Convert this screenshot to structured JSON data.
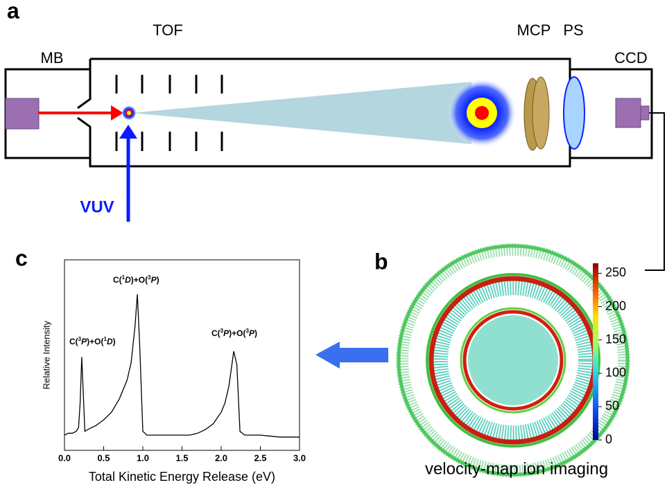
{
  "diagram": {
    "panel_a": "a",
    "panel_b": "b",
    "panel_c": "c",
    "tof": "TOF",
    "mb": "MB",
    "mcp": "MCP",
    "ps": "PS",
    "ccd": "CCD",
    "vuv": "VUV",
    "caption_b": "velocity-map ion imaging",
    "colorbar": {
      "lim": [
        0,
        265
      ],
      "ticks": [
        0,
        50,
        100,
        150,
        200,
        250
      ]
    }
  },
  "chart_data": {
    "type": "line",
    "xlabel": "Total Kinetic Energy Release (eV)",
    "ylabel": "Relative Intensity",
    "xlim": [
      0,
      3
    ],
    "xticks": [
      {
        "value": 0,
        "label": "0.0"
      },
      {
        "value": 0.5,
        "label": "0.5"
      },
      {
        "value": 1,
        "label": "1.0"
      },
      {
        "value": 1.5,
        "label": "1.5"
      },
      {
        "value": 2,
        "label": "2.0"
      },
      {
        "value": 2.5,
        "label": "2.5"
      },
      {
        "value": 3,
        "label": "3.0"
      }
    ],
    "ylim": [
      0,
      1
    ],
    "color": "#000000",
    "x": [
      0.0,
      0.05,
      0.1,
      0.15,
      0.18,
      0.2,
      0.22,
      0.24,
      0.26,
      0.3,
      0.4,
      0.5,
      0.6,
      0.7,
      0.8,
      0.85,
      0.9,
      0.93,
      0.96,
      1.0,
      1.05,
      1.2,
      1.4,
      1.6,
      1.7,
      1.8,
      1.9,
      2.0,
      2.05,
      2.1,
      2.16,
      2.2,
      2.24,
      2.3,
      2.5,
      2.75,
      3.0
    ],
    "values": [
      0.08,
      0.09,
      0.09,
      0.1,
      0.12,
      0.25,
      0.49,
      0.3,
      0.1,
      0.11,
      0.13,
      0.16,
      0.2,
      0.27,
      0.37,
      0.46,
      0.65,
      0.82,
      0.55,
      0.1,
      0.08,
      0.08,
      0.08,
      0.08,
      0.09,
      0.11,
      0.14,
      0.2,
      0.25,
      0.34,
      0.52,
      0.45,
      0.1,
      0.08,
      0.08,
      0.07,
      0.07
    ],
    "annotations": [
      {
        "parts": [
          {
            "text": "C(",
            "style": "normal"
          },
          {
            "text": "3",
            "style": "sup"
          },
          {
            "text": "P",
            "style": "italic"
          },
          {
            "text": ")+O(",
            "style": "normal"
          },
          {
            "text": "1",
            "style": "sup"
          },
          {
            "text": "D",
            "style": "italic"
          },
          {
            "text": ")",
            "style": "normal"
          }
        ]
      },
      {
        "parts": [
          {
            "text": "C(",
            "style": "normal"
          },
          {
            "text": "1",
            "style": "sup"
          },
          {
            "text": "D",
            "style": "italic"
          },
          {
            "text": ")+O(",
            "style": "normal"
          },
          {
            "text": "3",
            "style": "sup"
          },
          {
            "text": "P",
            "style": "italic"
          },
          {
            "text": ")",
            "style": "normal"
          }
        ]
      },
      {
        "parts": [
          {
            "text": "C(",
            "style": "normal"
          },
          {
            "text": "3",
            "style": "sup"
          },
          {
            "text": "P",
            "style": "italic"
          },
          {
            "text": ")+O(",
            "style": "normal"
          },
          {
            "text": "3",
            "style": "sup"
          },
          {
            "text": "P",
            "style": "italic"
          },
          {
            "text": ")",
            "style": "normal"
          }
        ]
      }
    ]
  }
}
